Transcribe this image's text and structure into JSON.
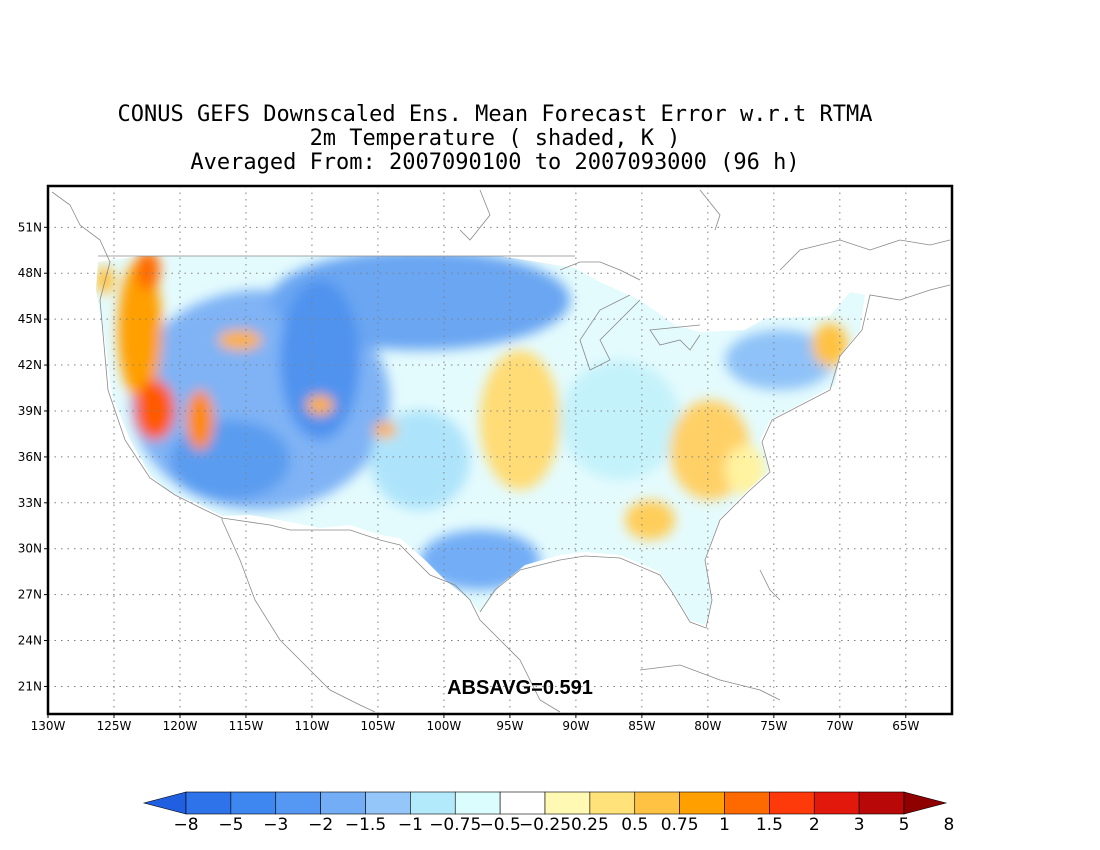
{
  "title": {
    "line1": "CONUS GEFS Downscaled Ens. Mean Forecast Error w.r.t RTMA",
    "line2": "2m Temperature ( shaded, K )",
    "line3": "Averaged From: 2007090100 to 2007093000 (96 h)"
  },
  "annotation": "ABSAVG=0.591",
  "axes": {
    "lat_labels": [
      "51N",
      "48N",
      "45N",
      "42N",
      "39N",
      "36N",
      "33N",
      "30N",
      "27N",
      "24N",
      "21N"
    ],
    "lat_values": [
      51,
      48,
      45,
      42,
      39,
      36,
      33,
      30,
      27,
      24,
      21
    ],
    "lon_labels": [
      "130W",
      "125W",
      "120W",
      "115W",
      "110W",
      "105W",
      "100W",
      "95W",
      "90W",
      "85W",
      "80W",
      "75W",
      "70W",
      "65W"
    ],
    "lon_values": [
      -130,
      -125,
      -120,
      -115,
      -110,
      -105,
      -100,
      -95,
      -90,
      -85,
      -80,
      -75,
      -70,
      -65
    ],
    "lon_range": [
      -130,
      -61.5
    ],
    "lat_range": [
      19.2,
      53.7
    ],
    "grid": "dotted"
  },
  "colorbar": {
    "labels": [
      "−8",
      "−5",
      "−3",
      "−2",
      "−1.5",
      "−1",
      "−0.75",
      "−0.5",
      "−0.25",
      "0.25",
      "0.5",
      "0.75",
      "1",
      "1.5",
      "2",
      "3",
      "5",
      "8"
    ],
    "colors": [
      "#1f5fe0",
      "#2f73ea",
      "#3f87f0",
      "#5598f3",
      "#72adf6",
      "#95c6fa",
      "#b3eafb",
      "#dcfdfd",
      "#ffffff",
      "#fff9b3",
      "#ffe27a",
      "#ffc243",
      "#ff9f00",
      "#ff6a00",
      "#ff3a0a",
      "#e3180c",
      "#b80808",
      "#8f0000"
    ]
  },
  "colors": {
    "gridline": "#808080",
    "coastline": "#888888",
    "frame": "#000000"
  }
}
